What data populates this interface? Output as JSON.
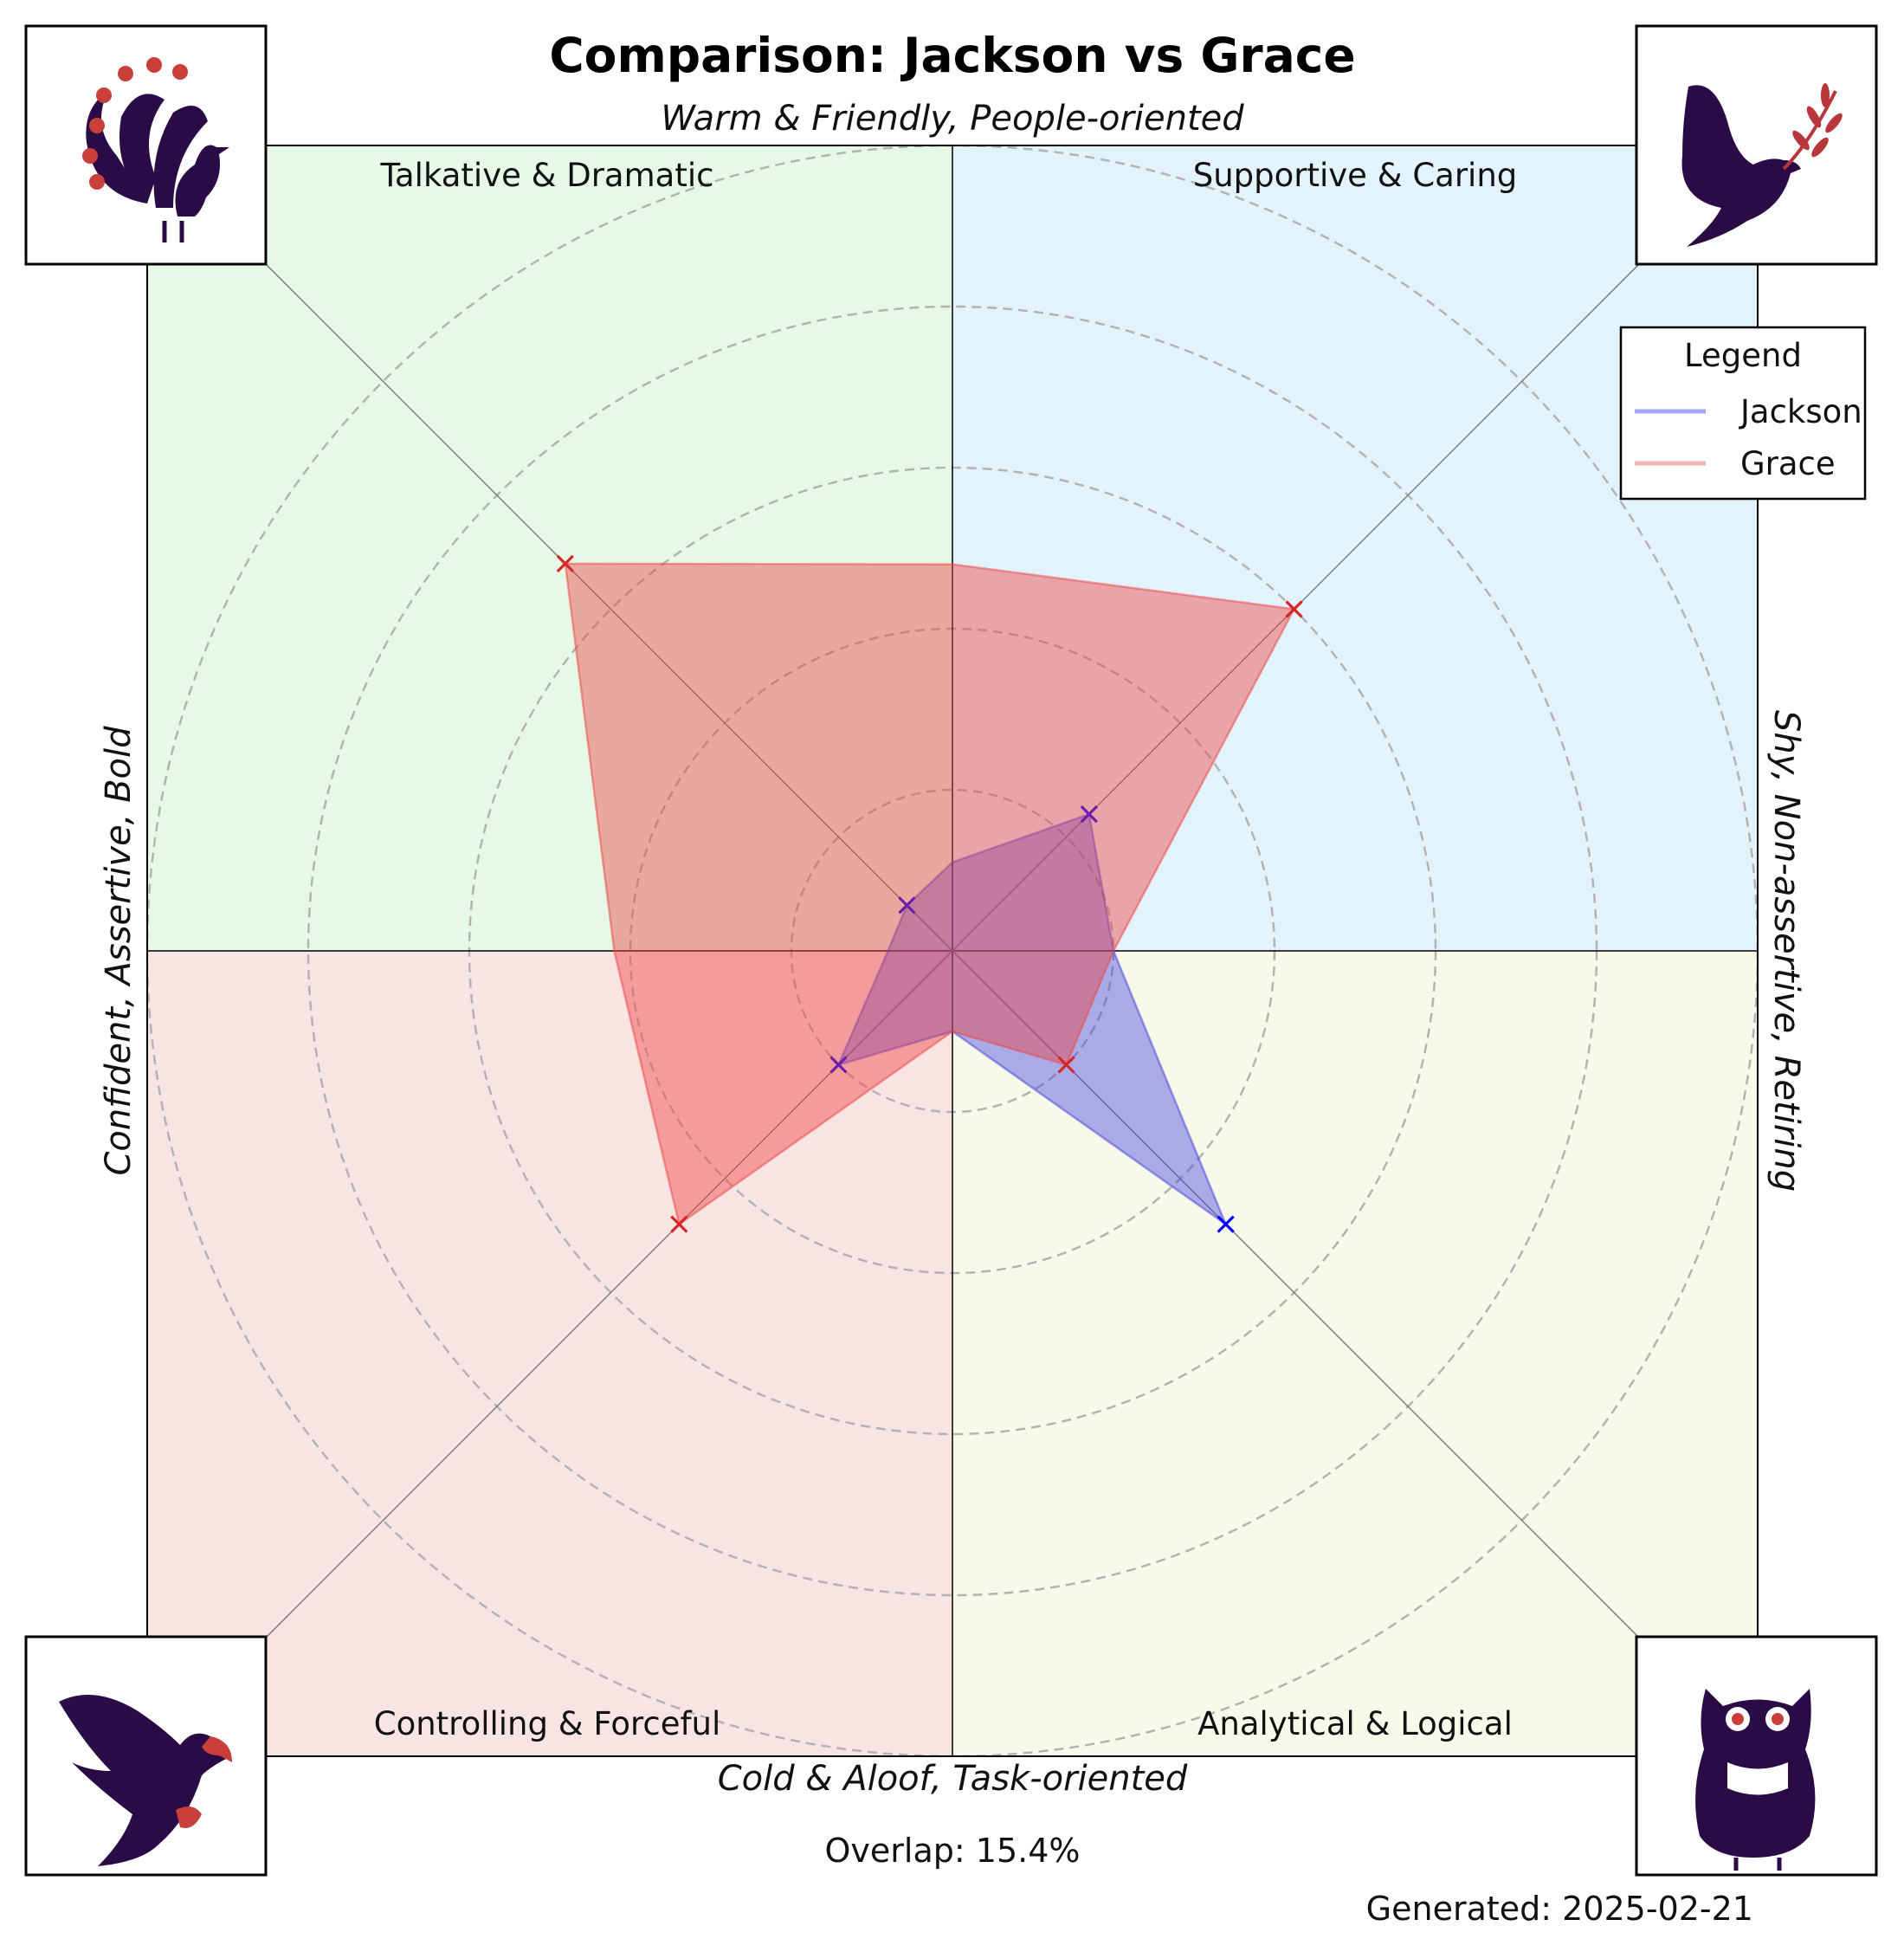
{
  "chart_data": {
    "type": "radar",
    "title": "Comparison: Jackson vs Grace",
    "axis_labels": {
      "top": "Warm & Friendly, People-oriented",
      "bottom": "Cold & Aloof, Task-oriented",
      "left": "Confident, Assertive, Bold",
      "right": "Shy, Non-assertive, Retiring"
    },
    "quadrants": [
      {
        "name": "Talkative & Dramatic",
        "color": "#e6f9e6",
        "icon": "peacock-icon"
      },
      {
        "name": "Supportive & Caring",
        "color": "#e3f3fc",
        "icon": "dove-icon"
      },
      {
        "name": "Controlling & Forceful",
        "color": "#f9e4e4",
        "icon": "eagle-icon"
      },
      {
        "name": "Analytical & Logical",
        "color": "#f9f9ea",
        "icon": "owl-icon"
      }
    ],
    "categories": [
      "Talkative & Dramatic",
      "Supportive & Caring",
      "Analytical & Logical",
      "Controlling & Forceful"
    ],
    "series": [
      {
        "name": "Jackson",
        "color": "#0000ff",
        "values": [
          0.8,
          2.4,
          4.8,
          2.0
        ]
      },
      {
        "name": "Grace",
        "color": "#d62728",
        "values": [
          6.8,
          6.0,
          2.0,
          4.8
        ]
      }
    ],
    "intermediate_values": {
      "Jackson": {
        "top": 1.1,
        "right": 2.0,
        "bottom": 1.0,
        "left": 0.8
      },
      "Grace": {
        "top": 4.8,
        "right": 2.0,
        "bottom": 1.0,
        "left": 4.2
      }
    },
    "rlim": [
      0,
      10
    ],
    "rings": [
      2,
      4,
      6,
      8,
      10
    ],
    "grid": true,
    "legend": {
      "title": "Legend",
      "position": "top-right"
    },
    "footer": {
      "overlap": "Overlap: 15.4%",
      "generated": "Generated: 2025-02-21"
    }
  }
}
